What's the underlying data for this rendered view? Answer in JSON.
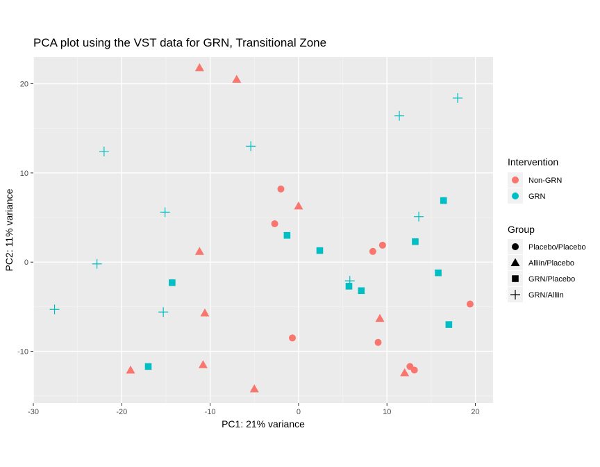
{
  "chart_data": {
    "type": "scatter",
    "title": "PCA plot using the VST data for GRN, Transitional Zone",
    "xlabel": "PC1: 21% variance",
    "ylabel": "PC2: 11% variance",
    "xlim": [
      -30,
      22
    ],
    "ylim": [
      -15.8,
      23
    ],
    "x_ticks": [
      -30,
      -20,
      -10,
      0,
      10,
      20
    ],
    "y_ticks": [
      -10,
      0,
      10,
      20
    ],
    "x_tick_labels": [
      "-30",
      "-20",
      "-10",
      "0",
      "10",
      "20"
    ],
    "y_tick_labels": [
      "-10",
      "0",
      "10",
      "20"
    ],
    "grid": true,
    "legend_placement": "right",
    "color_legend": {
      "title": "Intervention",
      "entries": [
        {
          "label": "Non-GRN",
          "color": "#F8766D"
        },
        {
          "label": "GRN",
          "color": "#00BFC4"
        }
      ]
    },
    "shape_legend": {
      "title": "Group",
      "entries": [
        {
          "label": "Placebo/Placebo",
          "shape": "circle"
        },
        {
          "label": "Alliin/Placebo",
          "shape": "triangle"
        },
        {
          "label": "GRN/Placebo",
          "shape": "square"
        },
        {
          "label": "GRN/Alliin",
          "shape": "plus"
        }
      ]
    },
    "points": [
      {
        "x": -11.2,
        "y": 21.8,
        "intervention": "Non-GRN",
        "group": "Alliin/Placebo"
      },
      {
        "x": -7.0,
        "y": 20.5,
        "intervention": "Non-GRN",
        "group": "Alliin/Placebo"
      },
      {
        "x": 0.0,
        "y": 6.3,
        "intervention": "Non-GRN",
        "group": "Alliin/Placebo"
      },
      {
        "x": -11.2,
        "y": 1.2,
        "intervention": "Non-GRN",
        "group": "Alliin/Placebo"
      },
      {
        "x": -10.6,
        "y": -5.7,
        "intervention": "Non-GRN",
        "group": "Alliin/Placebo"
      },
      {
        "x": -10.8,
        "y": -11.5,
        "intervention": "Non-GRN",
        "group": "Alliin/Placebo"
      },
      {
        "x": -19.0,
        "y": -12.1,
        "intervention": "Non-GRN",
        "group": "Alliin/Placebo"
      },
      {
        "x": -5.0,
        "y": -14.2,
        "intervention": "Non-GRN",
        "group": "Alliin/Placebo"
      },
      {
        "x": 9.2,
        "y": -6.3,
        "intervention": "Non-GRN",
        "group": "Alliin/Placebo"
      },
      {
        "x": 12.0,
        "y": -12.4,
        "intervention": "Non-GRN",
        "group": "Alliin/Placebo"
      },
      {
        "x": -2.0,
        "y": 8.2,
        "intervention": "Non-GRN",
        "group": "Placebo/Placebo"
      },
      {
        "x": -2.7,
        "y": 4.3,
        "intervention": "Non-GRN",
        "group": "Placebo/Placebo"
      },
      {
        "x": 8.4,
        "y": 1.2,
        "intervention": "Non-GRN",
        "group": "Placebo/Placebo"
      },
      {
        "x": 9.5,
        "y": 1.9,
        "intervention": "Non-GRN",
        "group": "Placebo/Placebo"
      },
      {
        "x": -0.7,
        "y": -8.5,
        "intervention": "Non-GRN",
        "group": "Placebo/Placebo"
      },
      {
        "x": 9.0,
        "y": -9.0,
        "intervention": "Non-GRN",
        "group": "Placebo/Placebo"
      },
      {
        "x": 12.6,
        "y": -11.7,
        "intervention": "Non-GRN",
        "group": "Placebo/Placebo"
      },
      {
        "x": 13.1,
        "y": -12.1,
        "intervention": "Non-GRN",
        "group": "Placebo/Placebo"
      },
      {
        "x": 19.4,
        "y": -4.7,
        "intervention": "Non-GRN",
        "group": "Placebo/Placebo"
      },
      {
        "x": -1.3,
        "y": 3.0,
        "intervention": "GRN",
        "group": "GRN/Placebo"
      },
      {
        "x": 2.4,
        "y": 1.3,
        "intervention": "GRN",
        "group": "GRN/Placebo"
      },
      {
        "x": -14.3,
        "y": -2.3,
        "intervention": "GRN",
        "group": "GRN/Placebo"
      },
      {
        "x": -17.0,
        "y": -11.7,
        "intervention": "GRN",
        "group": "GRN/Placebo"
      },
      {
        "x": 5.7,
        "y": -2.7,
        "intervention": "GRN",
        "group": "GRN/Placebo"
      },
      {
        "x": 7.1,
        "y": -3.2,
        "intervention": "GRN",
        "group": "GRN/Placebo"
      },
      {
        "x": 13.2,
        "y": 2.3,
        "intervention": "GRN",
        "group": "GRN/Placebo"
      },
      {
        "x": 16.4,
        "y": 6.9,
        "intervention": "GRN",
        "group": "GRN/Placebo"
      },
      {
        "x": 15.8,
        "y": -1.2,
        "intervention": "GRN",
        "group": "GRN/Placebo"
      },
      {
        "x": 17.0,
        "y": -7.0,
        "intervention": "GRN",
        "group": "GRN/Placebo"
      },
      {
        "x": -22.0,
        "y": 12.4,
        "intervention": "GRN",
        "group": "GRN/Alliin"
      },
      {
        "x": -5.4,
        "y": 13.0,
        "intervention": "GRN",
        "group": "GRN/Alliin"
      },
      {
        "x": -15.1,
        "y": 5.6,
        "intervention": "GRN",
        "group": "GRN/Alliin"
      },
      {
        "x": -22.8,
        "y": -0.2,
        "intervention": "GRN",
        "group": "GRN/Alliin"
      },
      {
        "x": -27.6,
        "y": -5.3,
        "intervention": "GRN",
        "group": "GRN/Alliin"
      },
      {
        "x": -15.3,
        "y": -5.6,
        "intervention": "GRN",
        "group": "GRN/Alliin"
      },
      {
        "x": 5.8,
        "y": -2.1,
        "intervention": "GRN",
        "group": "GRN/Alliin"
      },
      {
        "x": 11.4,
        "y": 16.4,
        "intervention": "GRN",
        "group": "GRN/Alliin"
      },
      {
        "x": 18.0,
        "y": 18.4,
        "intervention": "GRN",
        "group": "GRN/Alliin"
      },
      {
        "x": 13.6,
        "y": 5.1,
        "intervention": "GRN",
        "group": "GRN/Alliin"
      }
    ]
  }
}
